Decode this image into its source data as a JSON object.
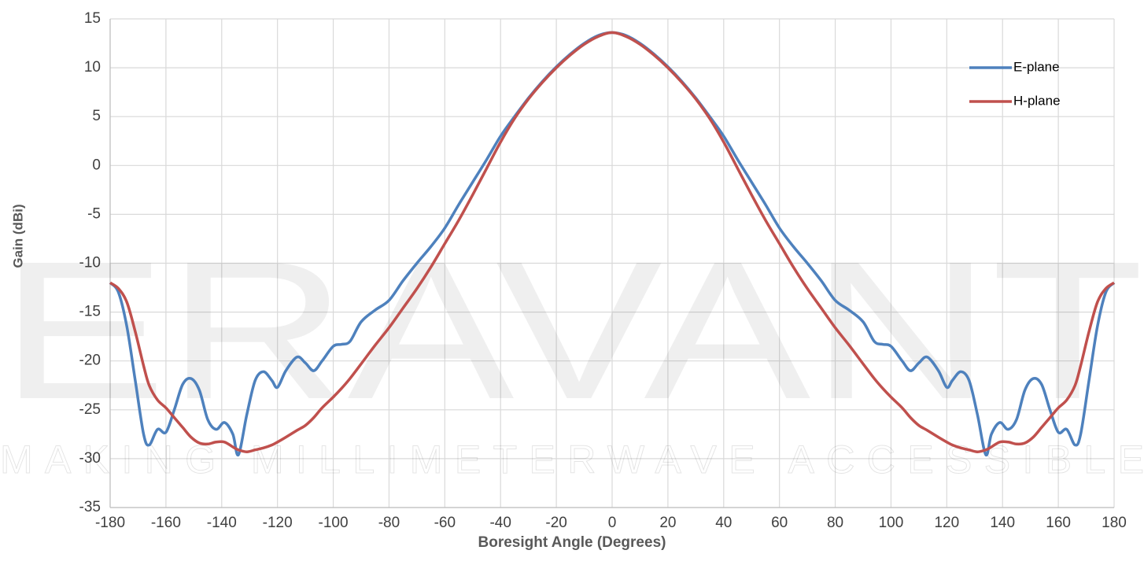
{
  "chart_data": {
    "type": "line",
    "xlabel": "Boresight Angle (Degrees)",
    "ylabel": "Gain (dBi)",
    "annotations": [
      "ERAVANT",
      "MAKING MILLIMETERWAVE ACCESSIBLE"
    ],
    "x": [
      -180,
      -177,
      -174,
      -171,
      -168,
      -166,
      -163,
      -160,
      -157,
      -154,
      -151,
      -148,
      -145,
      -142,
      -139,
      -136,
      -134,
      -131,
      -128,
      -125,
      -122,
      -120,
      -117,
      -113,
      -110,
      -107,
      -104,
      -100,
      -97,
      -94,
      -90,
      -85,
      -80,
      -75,
      -70,
      -65,
      -60,
      -55,
      -50,
      -45,
      -40,
      -35,
      -30,
      -25,
      -20,
      -15,
      -10,
      -5,
      0,
      5,
      10,
      15,
      20,
      25,
      30,
      35,
      40,
      45,
      50,
      55,
      60,
      65,
      70,
      75,
      80,
      85,
      90,
      94,
      97,
      100,
      104,
      107,
      110,
      113,
      117,
      120,
      122,
      125,
      128,
      131,
      134,
      136,
      139,
      142,
      145,
      148,
      151,
      154,
      157,
      160,
      163,
      166,
      168,
      171,
      174,
      177,
      180
    ],
    "series": [
      {
        "name": "E-plane",
        "color": "#4e81bd",
        "values": [
          -12,
          -13,
          -16.5,
          -22,
          -27.5,
          -28.6,
          -27,
          -27.3,
          -25,
          -22.4,
          -21.8,
          -23,
          -26,
          -27,
          -26.3,
          -27.5,
          -29.6,
          -25.5,
          -22,
          -21.1,
          -22,
          -22.7,
          -21,
          -19.6,
          -20.2,
          -21,
          -20,
          -18.5,
          -18.3,
          -18,
          -16,
          -14.8,
          -13.8,
          -11.8,
          -10,
          -8.3,
          -6.4,
          -4,
          -1.7,
          0.6,
          3,
          5,
          6.9,
          8.6,
          10.1,
          11.4,
          12.5,
          13.3,
          13.6,
          13.3,
          12.5,
          11.4,
          10.1,
          8.6,
          6.9,
          5,
          3,
          0.6,
          -1.7,
          -4,
          -6.4,
          -8.3,
          -10,
          -11.8,
          -13.8,
          -14.8,
          -16,
          -18,
          -18.3,
          -18.5,
          -20,
          -21,
          -20.2,
          -19.6,
          -21,
          -22.7,
          -22,
          -21.1,
          -22,
          -25.5,
          -29.6,
          -27.5,
          -26.3,
          -27,
          -26,
          -23,
          -21.8,
          -22.4,
          -25,
          -27.3,
          -27,
          -28.6,
          -27.5,
          -22,
          -16.5,
          -13,
          -12
        ]
      },
      {
        "name": "H-plane",
        "color": "#c0504d",
        "values": [
          -12,
          -12.6,
          -14,
          -17,
          -20.5,
          -22.5,
          -24,
          -24.8,
          -25.8,
          -26.8,
          -27.8,
          -28.4,
          -28.5,
          -28.3,
          -28.3,
          -28.8,
          -29.1,
          -29.3,
          -29.1,
          -28.9,
          -28.6,
          -28.3,
          -27.8,
          -27.1,
          -26.6,
          -25.8,
          -24.8,
          -23.7,
          -22.8,
          -21.8,
          -20.3,
          -18.4,
          -16.6,
          -14.6,
          -12.6,
          -10.4,
          -8,
          -5.6,
          -3,
          -0.3,
          2.4,
          4.8,
          6.8,
          8.5,
          10,
          11.3,
          12.4,
          13.2,
          13.6,
          13.2,
          12.4,
          11.3,
          10,
          8.5,
          6.8,
          4.8,
          2.4,
          -0.3,
          -3,
          -5.6,
          -8,
          -10.4,
          -12.6,
          -14.6,
          -16.6,
          -18.4,
          -20.3,
          -21.8,
          -22.8,
          -23.7,
          -24.8,
          -25.8,
          -26.6,
          -27.1,
          -27.8,
          -28.3,
          -28.6,
          -28.9,
          -29.1,
          -29.3,
          -29.1,
          -28.8,
          -28.3,
          -28.3,
          -28.5,
          -28.4,
          -27.8,
          -26.8,
          -25.8,
          -24.8,
          -24,
          -22.5,
          -20.5,
          -17,
          -14,
          -12.6,
          -12
        ]
      }
    ],
    "xlim": [
      -180,
      180
    ],
    "xticks": [
      -180,
      -160,
      -140,
      -120,
      -100,
      -80,
      -60,
      -40,
      -20,
      0,
      20,
      40,
      60,
      80,
      100,
      120,
      140,
      160,
      180
    ],
    "ylim": [
      -35,
      15
    ],
    "yticks": [
      -35,
      -30,
      -25,
      -20,
      -15,
      -10,
      -5,
      0,
      5,
      10,
      15
    ],
    "grid": true,
    "legend": "upper right"
  }
}
